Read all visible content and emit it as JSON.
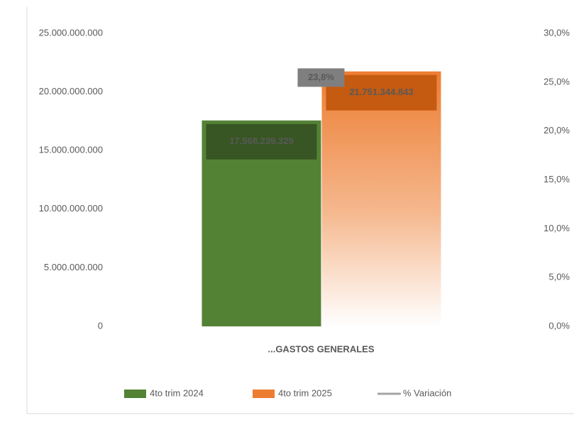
{
  "chart_data": {
    "type": "bar",
    "categories": [
      "...GASTOS GENERALES"
    ],
    "series": [
      {
        "name": "4to trim 2024",
        "color": "#548235",
        "label_color": "#375623",
        "values": [
          17568239329
        ],
        "value_labels": [
          "17.568.239.329"
        ]
      },
      {
        "name": "4to trim 2025",
        "color": "#ed7d31",
        "label_color": "#c55a11",
        "gradient": true,
        "values": [
          21751344843
        ],
        "value_labels": [
          "21.751.344.843"
        ]
      },
      {
        "name": "% Variación",
        "type": "line",
        "axis": "y2",
        "color": "#a5a5a5",
        "label_color": "#7f7f7f",
        "values": [
          23.8
        ],
        "value_labels": [
          "23,8%"
        ]
      }
    ],
    "ylim": [
      0,
      25000000000
    ],
    "yticks": [
      0,
      {
        "value": 5000000000,
        "label": "5.000.000.000"
      },
      {
        "value": 10000000000,
        "label": "10.000.000.000"
      },
      {
        "value": 15000000000,
        "label": "15.000.000.000"
      },
      {
        "value": 20000000000,
        "label": "20.000.000.000"
      },
      {
        "value": 25000000000,
        "label": "25.000.000.000"
      }
    ],
    "y2lim": [
      0,
      30
    ],
    "y2ticks": [
      {
        "value": 0,
        "label": "0,0%"
      },
      {
        "value": 5,
        "label": "5,0%"
      },
      {
        "value": 10,
        "label": "10,0%"
      },
      {
        "value": 15,
        "label": "15,0%"
      },
      {
        "value": 20,
        "label": "20,0%"
      },
      {
        "value": 25,
        "label": "25,0%"
      },
      {
        "value": 30,
        "label": "30,0%"
      }
    ],
    "grid": false,
    "legend": "bottom"
  }
}
